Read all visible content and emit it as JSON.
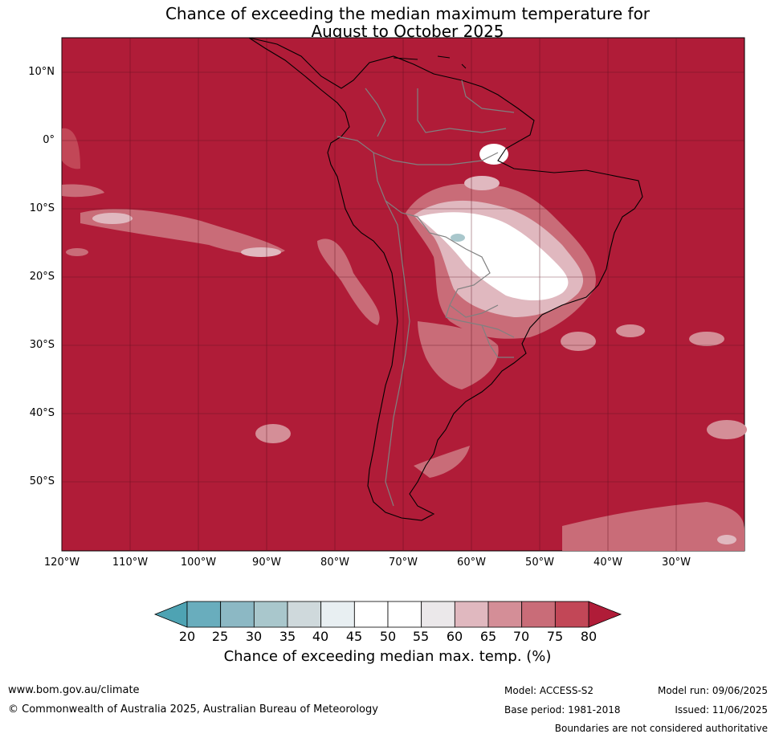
{
  "title": {
    "line1": "Chance of exceeding the median maximum temperature for",
    "line2": "August to October 2025"
  },
  "map": {
    "lat_labels": [
      "10°N",
      "0°",
      "10°S",
      "20°S",
      "30°S",
      "40°S",
      "50°S"
    ],
    "lon_labels": [
      "120°W",
      "110°W",
      "100°W",
      "90°W",
      "80°W",
      "70°W",
      "60°W",
      "50°W",
      "40°W",
      "30°W"
    ],
    "background_color": "#b01c38",
    "line_color": "#000000",
    "border_color": "#808080"
  },
  "colorbar": {
    "ticks": [
      "20",
      "25",
      "30",
      "35",
      "40",
      "45",
      "50",
      "55",
      "60",
      "65",
      "70",
      "75",
      "80"
    ],
    "colors": [
      "#69adbd",
      "#8cb8c4",
      "#a9c7cc",
      "#cfd9dc",
      "#e8eff2",
      "#ffffff",
      "#ffffff",
      "#ebe8ea",
      "#e0b8bf",
      "#d48e97",
      "#c96c78",
      "#c24757"
    ],
    "below_color": "#4ea3b3",
    "above_color": "#b01c38",
    "title": "Chance of exceeding median max. temp. (%)"
  },
  "footer": {
    "website": "www.bom.gov.au/climate",
    "copyright": "© Commonwealth of Australia 2025, Australian Bureau of Meteorology",
    "model": "Model: ACCESS-S2",
    "model_run": "Model run: 09/06/2025",
    "base_period": "Base period: 1981-2018",
    "issued": "Issued: 11/06/2025",
    "disclaimer": "Boundaries are not considered authoritative"
  }
}
